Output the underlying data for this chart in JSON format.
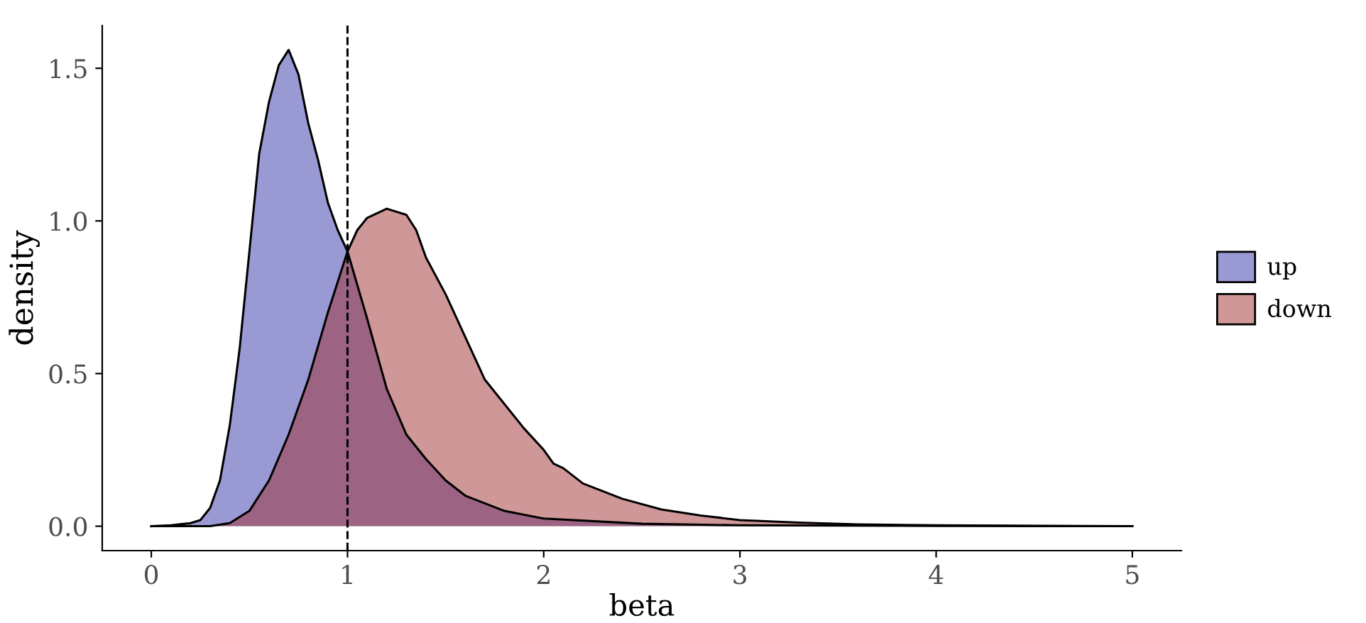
{
  "chart_data": {
    "type": "area",
    "xlabel": "beta",
    "ylabel": "density",
    "xlim": [
      -0.25,
      5.25
    ],
    "ylim": [
      -0.08,
      1.64
    ],
    "xticks": [
      0,
      1,
      2,
      3,
      4,
      5
    ],
    "yticks": [
      {
        "value": 0,
        "label": "0.0"
      },
      {
        "value": 0.5,
        "label": "0.5"
      },
      {
        "value": 1,
        "label": "1.0"
      },
      {
        "value": 1.5,
        "label": "1.5"
      }
    ],
    "grid": false,
    "legend": "right",
    "ref_lines": [
      {
        "axis": "x",
        "value": 1,
        "label": null,
        "line_style": "dashed",
        "color": "#000000"
      }
    ],
    "series": [
      {
        "name": "up",
        "color": "#9999d4",
        "x": [
          0,
          0.1,
          0.2,
          0.25,
          0.3,
          0.35,
          0.4,
          0.45,
          0.5,
          0.55,
          0.6,
          0.65,
          0.7,
          0.75,
          0.8,
          0.85,
          0.9,
          0.95,
          1.0,
          1.1,
          1.2,
          1.3,
          1.4,
          1.5,
          1.6,
          1.8,
          2.0,
          2.5,
          3.0,
          4.0,
          5.0
        ],
        "values": [
          0,
          0.003,
          0.01,
          0.02,
          0.06,
          0.15,
          0.33,
          0.58,
          0.9,
          1.22,
          1.39,
          1.51,
          1.56,
          1.48,
          1.32,
          1.2,
          1.06,
          0.97,
          0.9,
          0.68,
          0.45,
          0.3,
          0.22,
          0.15,
          0.1,
          0.05,
          0.025,
          0.008,
          0.003,
          0.001,
          0
        ]
      },
      {
        "name": "down",
        "color": "#cf9797",
        "x": [
          0,
          0.3,
          0.4,
          0.5,
          0.6,
          0.7,
          0.8,
          0.9,
          1.0,
          1.05,
          1.1,
          1.2,
          1.3,
          1.35,
          1.4,
          1.5,
          1.6,
          1.7,
          1.8,
          1.9,
          2.0,
          2.05,
          2.1,
          2.2,
          2.4,
          2.6,
          2.8,
          3.0,
          3.3,
          3.6,
          4.0,
          4.5,
          5.0
        ],
        "values": [
          0,
          0,
          0.01,
          0.05,
          0.15,
          0.3,
          0.48,
          0.7,
          0.9,
          0.97,
          1.01,
          1.04,
          1.02,
          0.97,
          0.88,
          0.76,
          0.62,
          0.48,
          0.4,
          0.32,
          0.25,
          0.205,
          0.19,
          0.14,
          0.09,
          0.055,
          0.035,
          0.02,
          0.012,
          0.006,
          0.003,
          0.001,
          0
        ]
      }
    ]
  }
}
